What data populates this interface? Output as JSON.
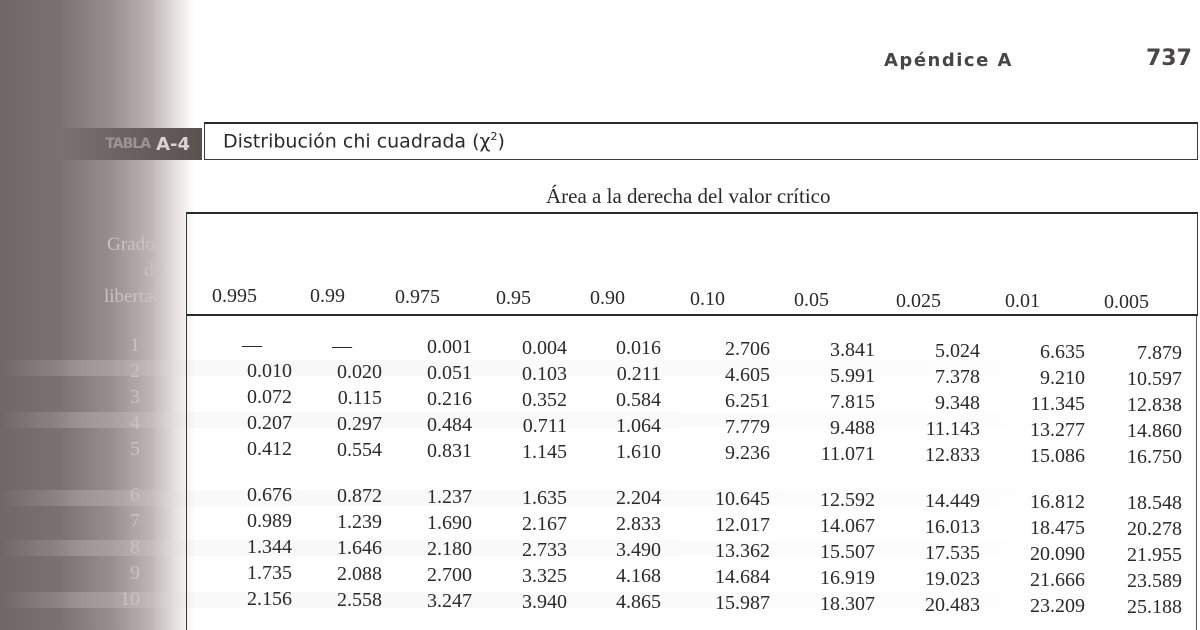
{
  "page": {
    "running_head": "Apéndice A",
    "page_number": "737"
  },
  "table": {
    "tag_prefix": "TABLA",
    "tag": "A-4",
    "title": "Distribución chi cuadrada (χ",
    "title_sup": "2",
    "title_close": ")",
    "area_label": "Área a la derecha del valor crítico",
    "df_label_lines": [
      "Grados",
      "de",
      "libertad"
    ],
    "columns": [
      "0.995",
      "0.99",
      "0.975",
      "0.95",
      "0.90",
      "0.10",
      "0.05",
      "0.025",
      "0.01",
      "0.005"
    ],
    "rows": [
      {
        "df": "1",
        "values": [
          "—",
          "—",
          "0.001",
          "0.004",
          "0.016",
          "2.706",
          "3.841",
          "5.024",
          "6.635",
          "7.879"
        ]
      },
      {
        "df": "2",
        "values": [
          "0.010",
          "0.020",
          "0.051",
          "0.103",
          "0.211",
          "4.605",
          "5.991",
          "7.378",
          "9.210",
          "10.597"
        ]
      },
      {
        "df": "3",
        "values": [
          "0.072",
          "0.115",
          "0.216",
          "0.352",
          "0.584",
          "6.251",
          "7.815",
          "9.348",
          "11.345",
          "12.838"
        ]
      },
      {
        "df": "4",
        "values": [
          "0.207",
          "0.297",
          "0.484",
          "0.711",
          "1.064",
          "7.779",
          "9.488",
          "11.143",
          "13.277",
          "14.860"
        ]
      },
      {
        "df": "5",
        "values": [
          "0.412",
          "0.554",
          "0.831",
          "1.145",
          "1.610",
          "9.236",
          "11.071",
          "12.833",
          "15.086",
          "16.750"
        ]
      },
      {
        "df": "6",
        "values": [
          "0.676",
          "0.872",
          "1.237",
          "1.635",
          "2.204",
          "10.645",
          "12.592",
          "14.449",
          "16.812",
          "18.548"
        ]
      },
      {
        "df": "7",
        "values": [
          "0.989",
          "1.239",
          "1.690",
          "2.167",
          "2.833",
          "12.017",
          "14.067",
          "16.013",
          "18.475",
          "20.278"
        ]
      },
      {
        "df": "8",
        "values": [
          "1.344",
          "1.646",
          "2.180",
          "2.733",
          "3.490",
          "13.362",
          "15.507",
          "17.535",
          "20.090",
          "21.955"
        ]
      },
      {
        "df": "9",
        "values": [
          "1.735",
          "2.088",
          "2.700",
          "3.325",
          "4.168",
          "14.684",
          "16.919",
          "19.023",
          "21.666",
          "23.589"
        ]
      },
      {
        "df": "10",
        "values": [
          "2.156",
          "2.558",
          "3.247",
          "3.940",
          "4.865",
          "15.987",
          "18.307",
          "20.483",
          "23.209",
          "25.188"
        ]
      }
    ]
  }
}
